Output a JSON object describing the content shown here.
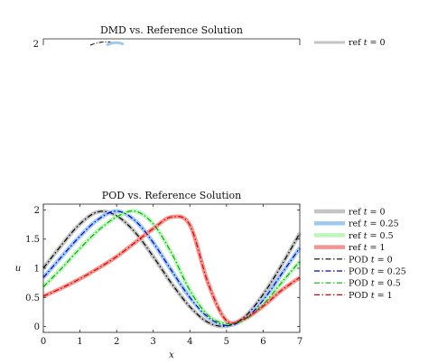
{
  "chart_data": [
    {
      "type": "line",
      "title": "DMD vs. Reference Solution",
      "note_cropped": true,
      "visible_ytick": "2",
      "legend": [
        {
          "label_pre": "ref ",
          "label_var": "t",
          "label_post": " = 0",
          "color": "#c4c4c4",
          "style": "solid"
        }
      ]
    },
    {
      "type": "line",
      "title": "POD vs. Reference Solution",
      "xlabel": "x",
      "ylabel": "u",
      "xlim": [
        0,
        7
      ],
      "ylim": [
        -0.1,
        2.1
      ],
      "xticks": [
        "0",
        "1",
        "2",
        "3",
        "4",
        "5",
        "6",
        "7"
      ],
      "yticks": [
        "0",
        "0.5",
        "1",
        "1.5",
        "2"
      ],
      "grid": false,
      "legend_position": "outside-right",
      "series": [
        {
          "name_pre": "ref ",
          "name_var": "t",
          "name_post": " = 0",
          "color": "#c4c4c4",
          "style": "solid",
          "x": [
            0,
            0.5,
            1,
            1.5,
            2,
            2.5,
            3,
            3.5,
            4,
            4.5,
            5,
            5.5,
            6,
            6.5,
            7
          ],
          "y": [
            1.0,
            1.4,
            1.76,
            1.97,
            1.9,
            1.62,
            1.2,
            0.74,
            0.34,
            0.07,
            0.01,
            0.17,
            0.55,
            1.05,
            1.6
          ]
        },
        {
          "name_pre": "ref ",
          "name_var": "t",
          "name_post": " = 0.25",
          "color": "#9fcbf3",
          "style": "solid",
          "x": [
            0,
            0.5,
            1,
            1.5,
            2,
            2.5,
            3,
            3.5,
            4,
            4.5,
            5,
            5.5,
            6,
            6.5,
            7
          ],
          "y": [
            0.84,
            1.2,
            1.55,
            1.84,
            1.98,
            1.82,
            1.44,
            0.96,
            0.5,
            0.16,
            0.02,
            0.13,
            0.45,
            0.9,
            1.35
          ]
        },
        {
          "name_pre": "ref ",
          "name_var": "t",
          "name_post": " = 0.5",
          "color": "#bdf5bd",
          "style": "solid",
          "x": [
            0,
            0.5,
            1,
            1.5,
            2,
            2.5,
            3,
            3.5,
            4,
            4.5,
            5,
            5.5,
            6,
            6.5,
            7
          ],
          "y": [
            0.68,
            1.0,
            1.34,
            1.65,
            1.88,
            1.98,
            1.76,
            1.26,
            0.62,
            0.19,
            0.05,
            0.12,
            0.38,
            0.75,
            1.12
          ]
        },
        {
          "name_pre": "ref ",
          "name_var": "t",
          "name_post": " = 1",
          "color": "#f2958f",
          "style": "solid",
          "x": [
            0,
            0.5,
            1,
            1.5,
            2,
            2.5,
            3,
            3.5,
            4,
            4.5,
            5,
            5.5,
            6,
            6.5,
            7
          ],
          "y": [
            0.52,
            0.66,
            0.82,
            1.0,
            1.2,
            1.44,
            1.68,
            1.88,
            1.74,
            0.74,
            0.1,
            0.14,
            0.35,
            0.62,
            0.84
          ]
        },
        {
          "name_pre": "POD ",
          "name_var": "t",
          "name_post": " = 0",
          "color": "#000000",
          "style": "dashdot",
          "x": [
            0,
            0.5,
            1,
            1.5,
            2,
            2.5,
            3,
            3.5,
            4,
            4.5,
            5,
            5.5,
            6,
            6.5,
            7
          ],
          "y": [
            1.0,
            1.4,
            1.76,
            1.97,
            1.9,
            1.62,
            1.2,
            0.74,
            0.34,
            0.07,
            0.01,
            0.17,
            0.55,
            1.05,
            1.6
          ]
        },
        {
          "name_pre": "POD ",
          "name_var": "t",
          "name_post": " = 0.25",
          "color": "#0000cc",
          "style": "dashdot",
          "x": [
            0,
            0.5,
            1,
            1.5,
            2,
            2.5,
            3,
            3.5,
            4,
            4.5,
            5,
            5.5,
            6,
            6.5,
            7
          ],
          "y": [
            0.84,
            1.2,
            1.55,
            1.84,
            1.98,
            1.82,
            1.44,
            0.96,
            0.5,
            0.16,
            0.02,
            0.13,
            0.45,
            0.9,
            1.35
          ]
        },
        {
          "name_pre": "POD ",
          "name_var": "t",
          "name_post": " = 0.5",
          "color": "#00b400",
          "style": "dashdot",
          "x": [
            0,
            0.5,
            1,
            1.5,
            2,
            2.5,
            3,
            3.5,
            4,
            4.5,
            5,
            5.5,
            6,
            6.5,
            7
          ],
          "y": [
            0.68,
            1.0,
            1.34,
            1.65,
            1.88,
            1.98,
            1.76,
            1.26,
            0.62,
            0.19,
            0.05,
            0.12,
            0.38,
            0.75,
            1.12
          ]
        },
        {
          "name_pre": "POD ",
          "name_var": "t",
          "name_post": " = 1",
          "color": "#dd0000",
          "style": "dashdot",
          "x": [
            0,
            0.5,
            1,
            1.5,
            2,
            2.5,
            3,
            3.5,
            4,
            4.5,
            5,
            5.5,
            6,
            6.5,
            7
          ],
          "y": [
            0.52,
            0.66,
            0.82,
            1.0,
            1.2,
            1.44,
            1.68,
            1.88,
            1.74,
            0.74,
            0.1,
            0.14,
            0.35,
            0.62,
            0.84
          ]
        }
      ]
    }
  ]
}
